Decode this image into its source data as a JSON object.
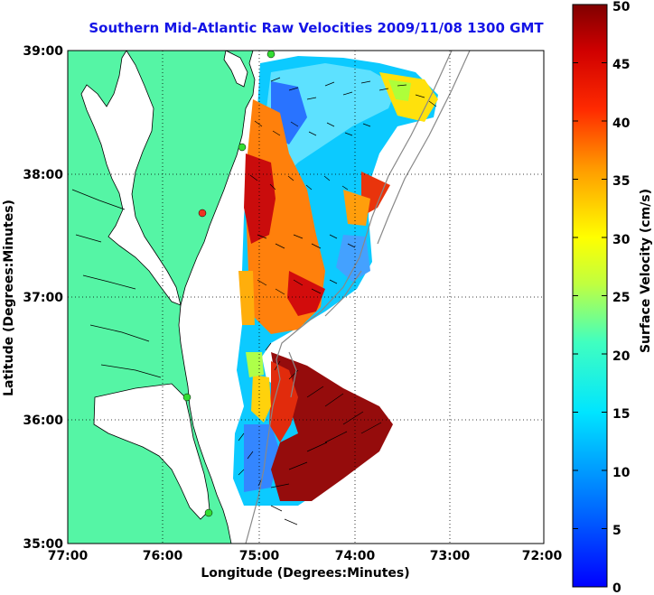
{
  "title": "Southern Mid-Atlantic Raw Velocities 2009/11/08 1300 GMT",
  "x_axis": {
    "label": "Longitude (Degrees:Minutes)",
    "ticks": [
      "77:00",
      "76:00",
      "75:00",
      "74:00",
      "73:00",
      "72:00"
    ]
  },
  "y_axis": {
    "label": "Latitude (Degrees:Minutes)",
    "ticks": [
      "39:00",
      "38:00",
      "37:00",
      "36:00",
      "35:00"
    ]
  },
  "colorbar": {
    "label": "Surface Velocity (cm/s)",
    "ticks": [
      "50",
      "45",
      "40",
      "35",
      "30",
      "25",
      "20",
      "15",
      "10",
      "5",
      "0"
    ],
    "min": 0,
    "max": 50
  },
  "colors": {
    "land": "#55f5a5",
    "title": "#1414e6",
    "station": "#33dd33",
    "station_alt": "#ee3322"
  },
  "map": {
    "lon_range": [
      -77,
      -72
    ],
    "lat_range": [
      35,
      39
    ],
    "grid": "dotted"
  }
}
